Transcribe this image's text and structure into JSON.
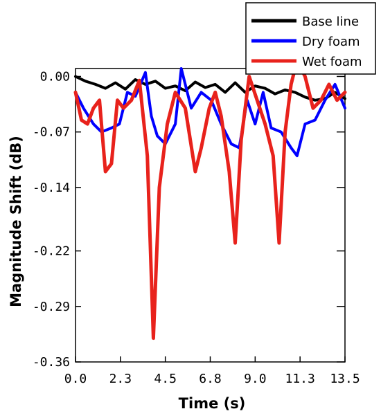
{
  "chart_data": {
    "type": "line",
    "title": "",
    "xlabel": "Time (s)",
    "ylabel": "Magnitude Shift (dB)",
    "xlim": [
      0,
      13.5
    ],
    "ylim": [
      -0.36,
      0.01
    ],
    "x_ticks": [
      "0.0",
      "2.3",
      "4.5",
      "6.8",
      "9.0",
      "11.3",
      "13.5"
    ],
    "y_ticks": [
      "0.00",
      "-0.07",
      "-0.14",
      "-0.22",
      "-0.29",
      "-0.36"
    ],
    "y_tick_values": [
      0.0,
      -0.07,
      -0.14,
      -0.22,
      -0.29,
      -0.36
    ],
    "grid": false,
    "legend_position": "top-right",
    "series": [
      {
        "name": "Base line",
        "color": "#000000",
        "x": [
          0,
          0.5,
          1,
          1.5,
          2,
          2.5,
          3,
          3.5,
          4,
          4.5,
          5,
          5.5,
          6,
          6.5,
          7,
          7.5,
          8,
          8.5,
          9,
          9.5,
          10,
          10.5,
          11,
          11.5,
          12,
          12.5,
          13,
          13.5
        ],
        "values": [
          0.0,
          -0.006,
          -0.01,
          -0.015,
          -0.008,
          -0.016,
          -0.004,
          -0.01,
          -0.006,
          -0.015,
          -0.012,
          -0.018,
          -0.007,
          -0.014,
          -0.01,
          -0.02,
          -0.008,
          -0.02,
          -0.012,
          -0.015,
          -0.022,
          -0.017,
          -0.02,
          -0.026,
          -0.03,
          -0.028,
          -0.02,
          -0.028
        ]
      },
      {
        "name": "Dry foam",
        "color": "#0000ff",
        "x": [
          0,
          0.4,
          0.9,
          1.3,
          1.8,
          2.2,
          2.6,
          3.0,
          3.5,
          3.8,
          4.1,
          4.5,
          5.0,
          5.3,
          5.8,
          6.3,
          6.8,
          7.3,
          7.8,
          8.2,
          8.6,
          9.0,
          9.4,
          9.8,
          10.3,
          10.8,
          11.1,
          11.5,
          12.0,
          12.5,
          13.0,
          13.5
        ],
        "values": [
          -0.02,
          -0.04,
          -0.06,
          -0.07,
          -0.065,
          -0.06,
          -0.02,
          -0.025,
          0.005,
          -0.05,
          -0.075,
          -0.085,
          -0.06,
          0.01,
          -0.04,
          -0.02,
          -0.03,
          -0.06,
          -0.085,
          -0.09,
          -0.03,
          -0.06,
          -0.02,
          -0.065,
          -0.07,
          -0.09,
          -0.1,
          -0.06,
          -0.055,
          -0.03,
          -0.01,
          -0.04
        ]
      },
      {
        "name": "Wet foam",
        "color": "#e8221c",
        "x": [
          0,
          0.3,
          0.6,
          0.9,
          1.2,
          1.5,
          1.8,
          2.1,
          2.4,
          2.8,
          3.2,
          3.6,
          3.9,
          4.2,
          4.6,
          5.0,
          5.5,
          6.0,
          6.3,
          6.7,
          7.0,
          7.3,
          7.7,
          8.0,
          8.3,
          8.7,
          9.1,
          9.5,
          9.9,
          10.2,
          10.5,
          10.8,
          11.1,
          11.5,
          11.9,
          12.3,
          12.7,
          13.1,
          13.5
        ],
        "values": [
          -0.02,
          -0.055,
          -0.06,
          -0.04,
          -0.03,
          -0.12,
          -0.11,
          -0.03,
          -0.04,
          -0.03,
          -0.005,
          -0.1,
          -0.33,
          -0.14,
          -0.06,
          -0.02,
          -0.04,
          -0.12,
          -0.09,
          -0.04,
          -0.02,
          -0.05,
          -0.12,
          -0.21,
          -0.08,
          0.0,
          -0.03,
          -0.06,
          -0.1,
          -0.21,
          -0.07,
          -0.01,
          0.02,
          0.0,
          -0.04,
          -0.03,
          -0.01,
          -0.03,
          -0.02
        ]
      }
    ]
  }
}
